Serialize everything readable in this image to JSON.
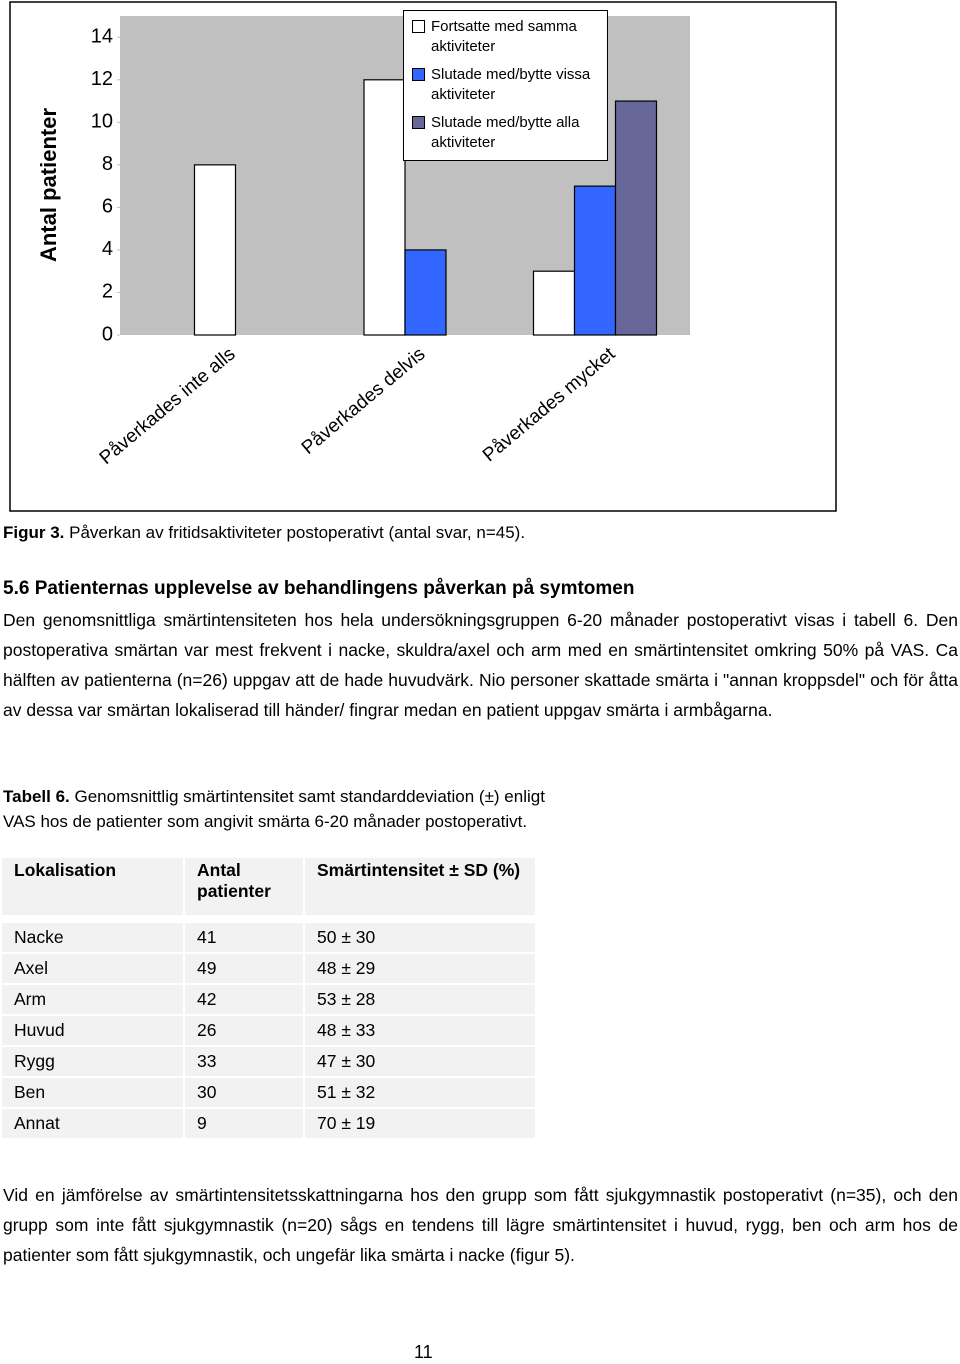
{
  "chart_data": {
    "type": "bar",
    "y_label": "Antal patienter",
    "categories": [
      "Påverkades inte alls",
      "Påverkades delvis",
      "Påverkades mycket"
    ],
    "series": [
      {
        "name": "Fortsatte med samma aktiviteter",
        "color": "#ffffff",
        "values": [
          8,
          12,
          3
        ]
      },
      {
        "name": "Slutade med/bytte vissa aktiviteter",
        "color": "#3366ff",
        "values": [
          null,
          4,
          7
        ]
      },
      {
        "name": "Slutade med/bytte alla aktiviteter",
        "color": "#666699",
        "values": [
          null,
          null,
          11
        ]
      }
    ],
    "ylim": [
      0,
      15
    ],
    "yticks": [
      0,
      2,
      4,
      6,
      8,
      10,
      12,
      14
    ],
    "plot_background": "#c0c0c0",
    "legend": "top-right"
  },
  "figure_caption": {
    "label": "Figur 3.",
    "text": "Påverkan av fritidsaktiviteter postoperativt (antal svar, n=45)."
  },
  "section": {
    "heading": "5.6 Patienternas upplevelse av behandlingens påverkan på symtomen",
    "paragraph": "Den genomsnittliga smärtintensiteten hos hela undersökningsgruppen 6-20 månader postoperativt visas i tabell 6. Den postoperativa smärtan var mest frekvent i nacke, skuldra/axel och arm med en smärtintensitet omkring 50% på VAS. Ca hälften av patienterna (n=26) uppgav att de hade huvudvärk. Nio personer skattade smärta i \"annan kroppsdel\" och för åtta av dessa var smärtan lokaliserad till händer/ fingrar medan en patient uppgav smärta i armbågarna."
  },
  "table": {
    "caption_label": "Tabell 6.",
    "caption": "Genomsnittlig smärtintensitet samt standarddeviation (±) enligt VAS hos de patienter som angivit smärta 6-20 månader postoperativt.",
    "header": [
      "Lokalisation",
      "Antal patienter",
      "Smärtintensitet ± SD (%)"
    ],
    "rows": [
      [
        "Nacke",
        "41",
        "50 ± 30"
      ],
      [
        "Axel",
        "49",
        "48 ± 29"
      ],
      [
        "Arm",
        "42",
        "53 ± 28"
      ],
      [
        "Huvud",
        "26",
        "48 ± 33"
      ],
      [
        "Rygg",
        "33",
        "47 ± 30"
      ],
      [
        "Ben",
        "30",
        "51 ± 32"
      ],
      [
        "Annat",
        "9",
        "70 ± 19"
      ]
    ]
  },
  "closing_paragraph": "Vid en jämförelse av smärtintensitetsskattningarna hos den grupp som fått sjukgymnastik postoperativt (n=35), och den grupp som inte fått sjukgymnastik (n=20) sågs en tendens till lägre smärtintensitet i huvud, rygg, ben och arm hos de patienter som fått sjukgymnastik, och ungefär lika smärta i nacke (figur 5).",
  "page_number": "11"
}
